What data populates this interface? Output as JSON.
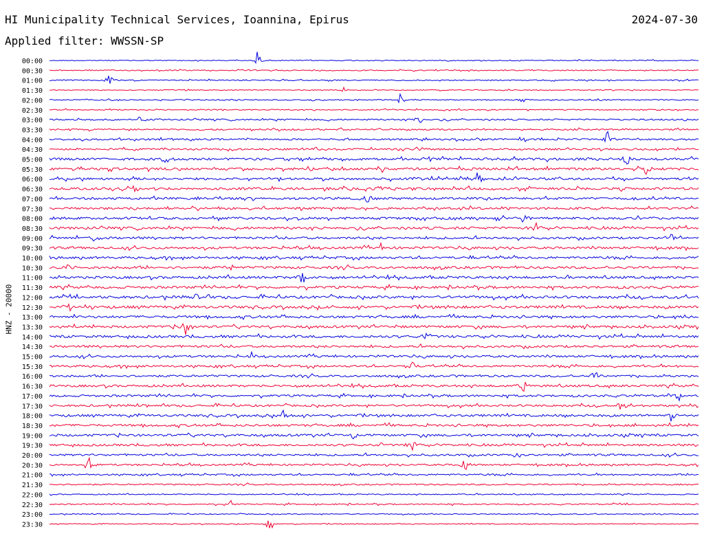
{
  "header": {
    "title": "HI Municipality Technical Services, Ioannina, Epirus",
    "date": "2024-07-30",
    "filter": "Applied filter: WWSSN-SP"
  },
  "chart_data": {
    "type": "line",
    "ylabel": "HNZ - 20000",
    "row_labels": [
      "00:00",
      "00:30",
      "01:00",
      "01:30",
      "02:00",
      "02:30",
      "03:00",
      "03:30",
      "04:00",
      "04:30",
      "05:00",
      "05:30",
      "06:00",
      "06:30",
      "07:00",
      "07:30",
      "08:00",
      "08:30",
      "09:00",
      "09:30",
      "10:00",
      "10:30",
      "11:00",
      "11:30",
      "12:00",
      "12:30",
      "13:00",
      "13:30",
      "14:00",
      "14:30",
      "15:00",
      "15:30",
      "16:00",
      "16:30",
      "17:00",
      "17:30",
      "18:00",
      "18:30",
      "19:00",
      "19:30",
      "20:00",
      "20:30",
      "21:00",
      "21:30",
      "22:00",
      "22:30",
      "23:00",
      "23:30"
    ],
    "colors": [
      "#0000dd",
      "#ee0033"
    ],
    "noise_levels": [
      0.5,
      0.6,
      0.6,
      0.5,
      0.6,
      0.6,
      0.9,
      0.9,
      1.0,
      1.0,
      1.4,
      1.4,
      1.3,
      1.4,
      1.3,
      1.3,
      1.4,
      1.4,
      1.3,
      1.3,
      1.3,
      1.4,
      1.4,
      1.4,
      1.5,
      1.5,
      1.4,
      1.4,
      1.4,
      1.3,
      1.2,
      1.2,
      1.2,
      1.3,
      1.2,
      1.2,
      1.3,
      1.3,
      1.3,
      1.2,
      1.1,
      1.0,
      0.9,
      0.8,
      0.6,
      0.7,
      0.5,
      0.5
    ],
    "events": [
      {
        "row": 0,
        "x": 0.32,
        "amp": 14
      },
      {
        "row": 2,
        "x": 0.09,
        "amp": 14
      },
      {
        "row": 3,
        "x": 0.45,
        "amp": 10
      },
      {
        "row": 4,
        "x": 0.54,
        "amp": 8
      },
      {
        "row": 4,
        "x": 0.73,
        "amp": 6
      },
      {
        "row": 6,
        "x": 0.14,
        "amp": 6
      },
      {
        "row": 6,
        "x": 0.57,
        "amp": 8
      },
      {
        "row": 8,
        "x": 0.73,
        "amp": 8
      },
      {
        "row": 8,
        "x": 0.86,
        "amp": 12
      },
      {
        "row": 9,
        "x": 0.41,
        "amp": 8
      },
      {
        "row": 9,
        "x": 0.57,
        "amp": 10
      },
      {
        "row": 10,
        "x": 0.18,
        "amp": 10
      },
      {
        "row": 10,
        "x": 0.89,
        "amp": 12
      },
      {
        "row": 11,
        "x": 0.51,
        "amp": 10
      },
      {
        "row": 11,
        "x": 0.92,
        "amp": 9
      },
      {
        "row": 12,
        "x": 0.66,
        "amp": 10
      },
      {
        "row": 13,
        "x": 0.13,
        "amp": 9
      },
      {
        "row": 13,
        "x": 0.51,
        "amp": 10
      },
      {
        "row": 14,
        "x": 0.49,
        "amp": 8
      },
      {
        "row": 16,
        "x": 0.73,
        "amp": 8
      },
      {
        "row": 17,
        "x": 0.75,
        "amp": 10
      },
      {
        "row": 18,
        "x": 0.07,
        "amp": 10
      },
      {
        "row": 18,
        "x": 0.96,
        "amp": 9
      },
      {
        "row": 19,
        "x": 0.51,
        "amp": 8
      },
      {
        "row": 21,
        "x": 0.03,
        "amp": 10
      },
      {
        "row": 21,
        "x": 0.28,
        "amp": 8
      },
      {
        "row": 22,
        "x": 0.39,
        "amp": 12
      },
      {
        "row": 24,
        "x": 0.23,
        "amp": 10
      },
      {
        "row": 25,
        "x": 0.03,
        "amp": 10
      },
      {
        "row": 26,
        "x": 0.98,
        "amp": 8
      },
      {
        "row": 27,
        "x": 0.21,
        "amp": 16
      },
      {
        "row": 28,
        "x": 0.58,
        "amp": 10
      },
      {
        "row": 30,
        "x": 0.31,
        "amp": 8
      },
      {
        "row": 31,
        "x": 0.56,
        "amp": 8
      },
      {
        "row": 32,
        "x": 0.84,
        "amp": 12
      },
      {
        "row": 33,
        "x": 0.73,
        "amp": 10
      },
      {
        "row": 34,
        "x": 0.97,
        "amp": 10
      },
      {
        "row": 35,
        "x": 0.88,
        "amp": 8
      },
      {
        "row": 36,
        "x": 0.36,
        "amp": 10
      },
      {
        "row": 36,
        "x": 0.96,
        "amp": 12
      },
      {
        "row": 38,
        "x": 0.47,
        "amp": 12
      },
      {
        "row": 39,
        "x": 0.56,
        "amp": 12
      },
      {
        "row": 40,
        "x": 0.72,
        "amp": 6
      },
      {
        "row": 41,
        "x": 0.06,
        "amp": 14
      },
      {
        "row": 41,
        "x": 0.64,
        "amp": 12
      },
      {
        "row": 45,
        "x": 0.28,
        "amp": 8
      },
      {
        "row": 47,
        "x": 0.34,
        "amp": 14
      }
    ]
  }
}
